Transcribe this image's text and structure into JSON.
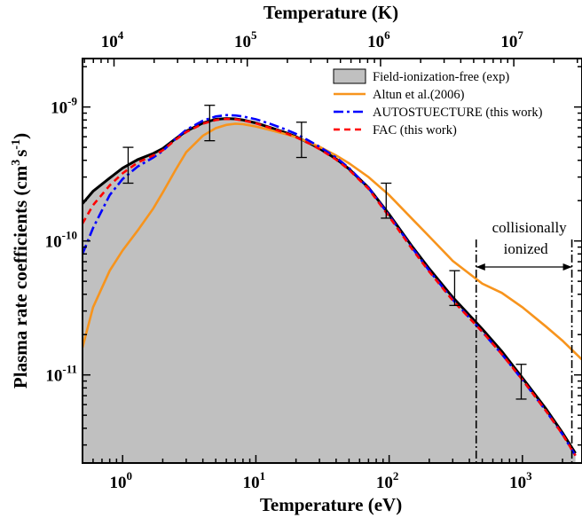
{
  "chart_data": {
    "type": "line",
    "xlabel": "Temperature (eV)",
    "x2label": "Temperature (K)",
    "ylabel_main": "Plasma rate coefficients (cm",
    "ylabel_exp1": "3",
    "ylabel_mid": "s",
    "ylabel_exp2": "-1",
    "ylabel_end": ")",
    "x_scale": "log",
    "y_scale": "log",
    "xlim": [
      0.5,
      2800
    ],
    "ylim": [
      2.2e-12,
      2.3e-09
    ],
    "x_ticks": [
      {
        "base": "10",
        "exp": "0",
        "value": 1
      },
      {
        "base": "10",
        "exp": "1",
        "value": 10
      },
      {
        "base": "10",
        "exp": "2",
        "value": 100
      },
      {
        "base": "10",
        "exp": "3",
        "value": 1000
      }
    ],
    "x2_ticks": [
      {
        "base": "10",
        "exp": "4",
        "value_eV": 0.8617
      },
      {
        "base": "10",
        "exp": "5",
        "value_eV": 8.617
      },
      {
        "base": "10",
        "exp": "6",
        "value_eV": 86.17
      },
      {
        "base": "10",
        "exp": "7",
        "value_eV": 861.7
      }
    ],
    "y_ticks": [
      {
        "base": "10",
        "exp": "-11",
        "value": 1e-11
      },
      {
        "base": "10",
        "exp": "-10",
        "value": 1e-10
      },
      {
        "base": "10",
        "exp": "-9",
        "value": 1e-09
      }
    ],
    "series": [
      {
        "name": "Field-ionization-free (exp)",
        "style": "filled",
        "color": "#c0c0c0",
        "edge": "#000000",
        "x": [
          0.5,
          0.6,
          0.8,
          1.0,
          1.3,
          1.7,
          2.0,
          2.5,
          3.0,
          4.0,
          5.0,
          6.0,
          7.0,
          8.0,
          10,
          13,
          17,
          20,
          25,
          30,
          40,
          50,
          70,
          100,
          150,
          200,
          300,
          500,
          700,
          1000,
          1500,
          2000,
          2500
        ],
        "y": [
          1.9e-10,
          2.35e-10,
          2.95e-10,
          3.5e-10,
          4.05e-10,
          4.5e-10,
          4.9e-10,
          5.8e-10,
          6.6e-10,
          7.6e-10,
          8.1e-10,
          8.2e-10,
          8.15e-10,
          8e-10,
          7.6e-10,
          7e-10,
          6.4e-10,
          6e-10,
          5.4e-10,
          4.9e-10,
          4.1e-10,
          3.45e-10,
          2.5e-10,
          1.58e-10,
          9e-11,
          6.2e-11,
          3.8e-11,
          2.2e-11,
          1.5e-11,
          9.5e-12,
          5.6e-12,
          3.7e-12,
          2.6e-12
        ]
      },
      {
        "name": "Altun et al.(2006)",
        "style": "solid",
        "color": "#f7941d",
        "x": [
          0.5,
          0.6,
          0.8,
          1.0,
          1.3,
          1.7,
          2.0,
          2.5,
          3.0,
          4.0,
          5.0,
          6.0,
          7.0,
          8.0,
          10,
          13,
          17,
          20,
          25,
          30,
          40,
          50,
          70,
          100,
          150,
          200,
          300,
          500,
          700,
          1000,
          1500,
          2000,
          2800
        ],
        "y": [
          1.6e-11,
          3.2e-11,
          6e-11,
          8.5e-11,
          1.2e-10,
          1.75e-10,
          2.3e-10,
          3.4e-10,
          4.6e-10,
          6.1e-10,
          6.95e-10,
          7.35e-10,
          7.5e-10,
          7.45e-10,
          7.15e-10,
          6.7e-10,
          6.25e-10,
          5.95e-10,
          5.45e-10,
          5.05e-10,
          4.35e-10,
          3.8e-10,
          3e-10,
          2.2e-10,
          1.45e-10,
          1.08e-10,
          7.1e-11,
          4.8e-11,
          4.1e-11,
          3.2e-11,
          2.3e-11,
          1.8e-11,
          1.3e-11
        ]
      },
      {
        "name": "AUTOSTUECTURE (this work)",
        "style": "dashdot",
        "color": "#0000ff",
        "x": [
          0.5,
          0.6,
          0.8,
          1.0,
          1.3,
          1.7,
          2.0,
          2.5,
          3.0,
          4.0,
          5.0,
          6.0,
          7.0,
          8.0,
          10,
          13,
          17,
          20,
          25,
          30,
          40,
          50,
          70,
          100,
          150,
          200,
          300,
          500,
          700,
          1000,
          1500,
          2000,
          2500
        ],
        "y": [
          8e-11,
          1.25e-10,
          2.2e-10,
          2.9e-10,
          3.6e-10,
          4.2e-10,
          4.7e-10,
          5.8e-10,
          6.75e-10,
          7.9e-10,
          8.5e-10,
          8.7e-10,
          8.65e-10,
          8.5e-10,
          8.1e-10,
          7.45e-10,
          6.75e-10,
          6.3e-10,
          5.6e-10,
          5.05e-10,
          4.2e-10,
          3.5e-10,
          2.5e-10,
          1.55e-10,
          8.8e-11,
          6e-11,
          3.65e-11,
          2.1e-11,
          1.43e-11,
          9.2e-12,
          5.4e-12,
          3.6e-12,
          2.5e-12
        ]
      },
      {
        "name": "FAC (this work)",
        "style": "dashed",
        "color": "#ff0000",
        "x": [
          0.5,
          0.6,
          0.8,
          1.0,
          1.3,
          1.7,
          2.0,
          2.5,
          3.0,
          4.0,
          5.0,
          6.0,
          7.0,
          8.0,
          10,
          13,
          17,
          20,
          25,
          30,
          40,
          50,
          70,
          100,
          150,
          200,
          300,
          500,
          700,
          1000,
          1500,
          2000,
          2500
        ],
        "y": [
          1.35e-10,
          1.85e-10,
          2.6e-10,
          3.2e-10,
          3.85e-10,
          4.35e-10,
          4.75e-10,
          5.7e-10,
          6.5e-10,
          7.5e-10,
          8e-10,
          8.15e-10,
          8.1e-10,
          7.95e-10,
          7.55e-10,
          6.95e-10,
          6.35e-10,
          5.95e-10,
          5.35e-10,
          4.85e-10,
          4.05e-10,
          3.4e-10,
          2.45e-10,
          1.52e-10,
          8.6e-11,
          5.9e-11,
          3.6e-11,
          2.1e-11,
          1.43e-11,
          9.2e-12,
          5.4e-12,
          3.6e-12,
          2.5e-12
        ]
      }
    ],
    "error_bars": {
      "color": "#000000",
      "points": [
        {
          "x": 1.1,
          "y": 3.65e-10,
          "ylo": 2.7e-10,
          "yhi": 5e-10
        },
        {
          "x": 4.5,
          "y": 7.6e-10,
          "ylo": 5.6e-10,
          "yhi": 1.03e-09
        },
        {
          "x": 22,
          "y": 5.7e-10,
          "ylo": 4.2e-10,
          "yhi": 7.7e-10
        },
        {
          "x": 95,
          "y": 2e-10,
          "ylo": 1.48e-10,
          "yhi": 2.7e-10
        },
        {
          "x": 310,
          "y": 4.5e-11,
          "ylo": 3.3e-11,
          "yhi": 6e-11
        },
        {
          "x": 980,
          "y": 9e-12,
          "ylo": 6.6e-12,
          "yhi": 1.2e-11
        }
      ]
    },
    "annotation": {
      "line1": "collisionally",
      "line2": "ionized",
      "x_start": 450,
      "x_end": 2350,
      "arrow_y": 4.5e-11
    },
    "legend_position": "top-right",
    "grid": false
  }
}
